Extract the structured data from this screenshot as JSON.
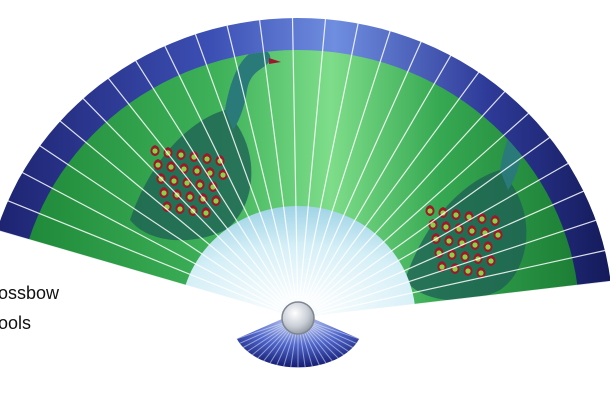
{
  "captions": {
    "line1": "ossbow",
    "line2": "ools"
  },
  "fan": {
    "decoration": "peacock",
    "rib_count": 27,
    "colors": {
      "border_dark": "#1d2370",
      "border_light": "#4b61c6",
      "leaf_light": "#6ad07a",
      "leaf_dark": "#1f8a3a",
      "hub_light": "#e9f7fb",
      "hub_blue": "#9fd3e6",
      "handle_dark": "#1a2480",
      "handle_light": "#8fa5e2",
      "pivot": "#d9dde2",
      "peacock_body": "#2a7a7a",
      "feather_red": "#a0172c",
      "feather_green": "#86d444",
      "rib_white": "#ffffff"
    }
  }
}
